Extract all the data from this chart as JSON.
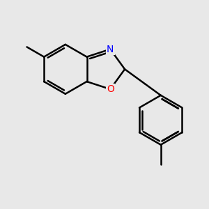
{
  "bg_color": "#e8e8e8",
  "bond_color": "#000000",
  "bond_width": 1.8,
  "N_color": "#0000ff",
  "O_color": "#ff0000",
  "label_fontsize": 10,
  "label_bg": "#e8e8e8"
}
